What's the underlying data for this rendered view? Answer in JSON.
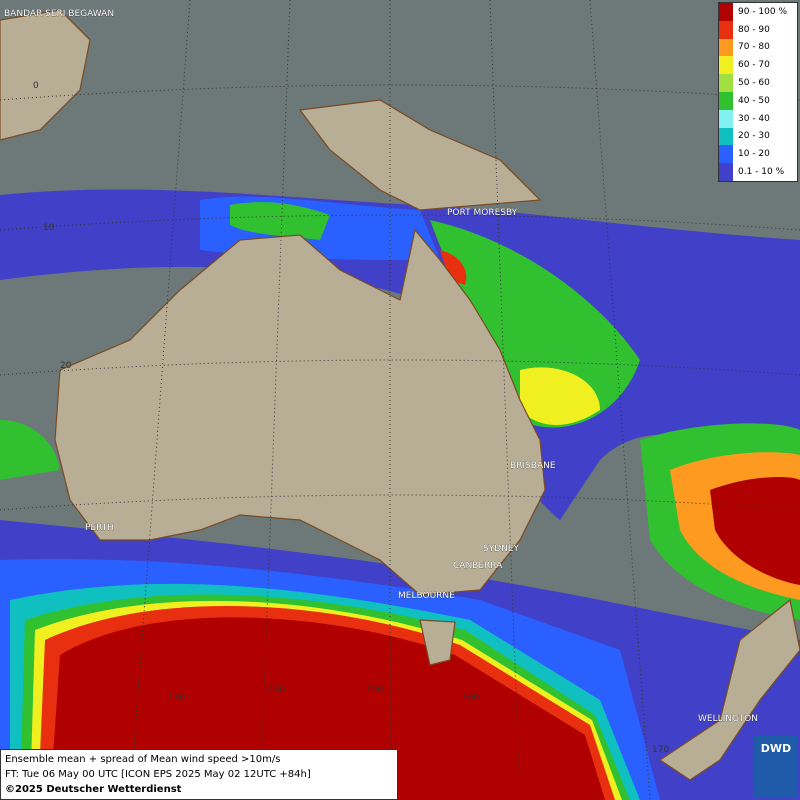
{
  "legend": {
    "items": [
      {
        "label": "90 - 100 %",
        "color": "#b00000"
      },
      {
        "label": "80 - 90",
        "color": "#e83010"
      },
      {
        "label": "70 - 80",
        "color": "#ff9a20"
      },
      {
        "label": "60 - 70",
        "color": "#f0f020"
      },
      {
        "label": "50 - 60",
        "color": "#a0e040"
      },
      {
        "label": "40 - 50",
        "color": "#30c030"
      },
      {
        "label": "30 - 40",
        "color": "#80f0f0"
      },
      {
        "label": "20 - 30",
        "color": "#10c0c0"
      },
      {
        "label": "10 - 20",
        "color": "#2a60ff"
      },
      {
        "label": "0.1 - 10 %",
        "color": "#4040c8"
      }
    ]
  },
  "places": [
    "BANDAR SERI BEGAWAN",
    "PORT MORESBY",
    "BRISBANE",
    "PERTH",
    "SYDNEY",
    "CANBERRA",
    "MELBOURNE",
    "WELLINGTON"
  ],
  "grid_labels": [
    "0",
    "10",
    "20",
    "130",
    "140",
    "150",
    "160",
    "170"
  ],
  "caption": {
    "lines": [
      "Ensemble mean + spread of Mean wind speed >10m/s",
      "FT: Tue 06 May 00 UTC [ICON EPS 2025 May 02 12UTC +84h]"
    ],
    "copyright": "©2025 Deutscher Wetterdienst"
  },
  "logo": "DWD"
}
